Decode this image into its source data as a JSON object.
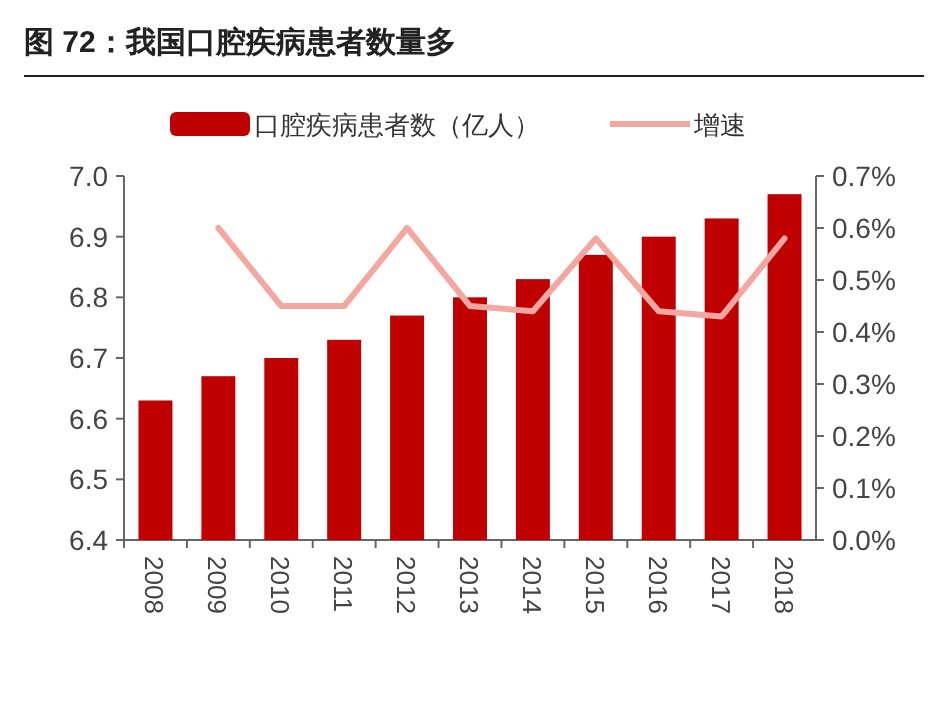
{
  "chart_data": {
    "type": "bar",
    "title": "图 72：我国口腔疾病患者数量多",
    "categories": [
      "2008",
      "2009",
      "2010",
      "2011",
      "2012",
      "2013",
      "2014",
      "2015",
      "2016",
      "2017",
      "2018"
    ],
    "series": [
      {
        "name": "口腔疾病患者数（亿人）",
        "color": "#c00000",
        "values": [
          6.63,
          6.67,
          6.7,
          6.73,
          6.77,
          6.8,
          6.83,
          6.87,
          6.9,
          6.93,
          6.97
        ]
      },
      {
        "name": "增速",
        "type": "line",
        "axis": "y2",
        "color": "#f4a6a0",
        "values": [
          null,
          0.6,
          0.45,
          0.45,
          0.6,
          0.45,
          0.44,
          0.58,
          0.44,
          0.43,
          0.58
        ]
      }
    ],
    "ylim": [
      6.4,
      7.0
    ],
    "yticks": [
      6.4,
      6.5,
      6.6,
      6.7,
      6.8,
      6.9,
      {
        "value": 7,
        "label": "7.0"
      }
    ],
    "y2lim": [
      0,
      0.7
    ],
    "y2ticks": [
      {
        "value": 0,
        "label": "0.0%"
      },
      {
        "value": 0.1,
        "label": "0.1%"
      },
      {
        "value": 0.2,
        "label": "0.2%"
      },
      {
        "value": 0.3,
        "label": "0.3%"
      },
      {
        "value": 0.4,
        "label": "0.4%"
      },
      {
        "value": 0.5,
        "label": "0.5%"
      },
      {
        "value": 0.6,
        "label": "0.6%"
      },
      {
        "value": 0.7,
        "label": "0.7%"
      }
    ],
    "legend": "top",
    "grid": false
  }
}
